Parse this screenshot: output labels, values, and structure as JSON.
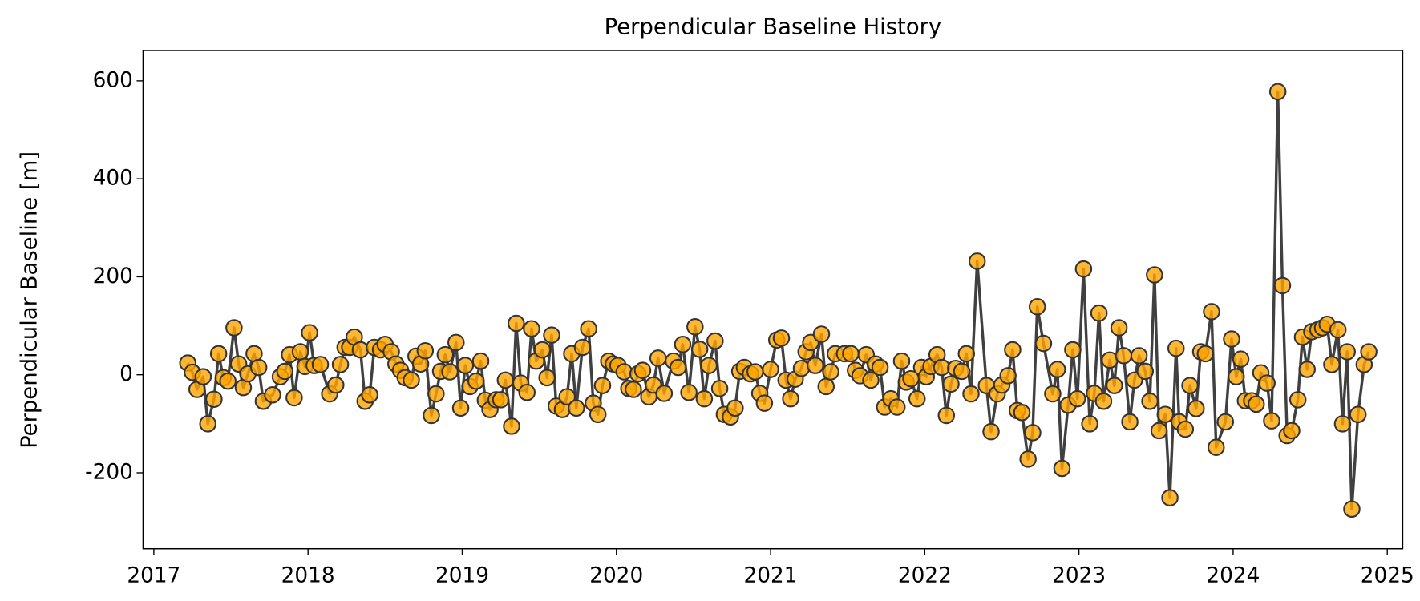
{
  "chart_data": {
    "type": "line",
    "title": "Perpendicular Baseline History",
    "y_label": "Perpendicular Baseline [m]",
    "color": "#404040",
    "marker_color": "#ffa500",
    "marker_edge": "#333333",
    "xlim": [
      2016.93,
      2025.1
    ],
    "xticks": [
      2017,
      2018,
      2019,
      2020,
      2021,
      2022,
      2023,
      2024,
      2025
    ],
    "ylim": [
      -355,
      662
    ],
    "yticks": [
      -200,
      0,
      200,
      400,
      600
    ],
    "grid": false,
    "x": [
      2017.22,
      2017.25,
      2017.28,
      2017.32,
      2017.35,
      2017.39,
      2017.42,
      2017.45,
      2017.48,
      2017.52,
      2017.55,
      2017.58,
      2017.61,
      2017.65,
      2017.68,
      2017.71,
      2017.77,
      2017.82,
      2017.85,
      2017.88,
      2017.91,
      2017.95,
      2017.98,
      2018.01,
      2018.04,
      2018.08,
      2018.14,
      2018.18,
      2018.21,
      2018.24,
      2018.27,
      2018.3,
      2018.34,
      2018.37,
      2018.4,
      2018.43,
      2018.47,
      2018.5,
      2018.54,
      2018.57,
      2018.6,
      2018.63,
      2018.67,
      2018.7,
      2018.73,
      2018.76,
      2018.8,
      2018.83,
      2018.86,
      2018.89,
      2018.92,
      2018.96,
      2018.99,
      2019.02,
      2019.05,
      2019.09,
      2019.12,
      2019.15,
      2019.18,
      2019.22,
      2019.25,
      2019.28,
      2019.32,
      2019.35,
      2019.38,
      2019.42,
      2019.45,
      2019.48,
      2019.52,
      2019.55,
      2019.58,
      2019.61,
      2019.65,
      2019.68,
      2019.71,
      2019.74,
      2019.78,
      2019.82,
      2019.85,
      2019.88,
      2019.91,
      2019.95,
      2019.98,
      2020.01,
      2020.05,
      2020.08,
      2020.11,
      2020.14,
      2020.17,
      2020.21,
      2020.24,
      2020.27,
      2020.31,
      2020.37,
      2020.4,
      2020.43,
      2020.47,
      2020.51,
      2020.54,
      2020.57,
      2020.6,
      2020.64,
      2020.67,
      2020.7,
      2020.74,
      2020.77,
      2020.8,
      2020.83,
      2020.87,
      2020.9,
      2020.93,
      2020.96,
      2021.0,
      2021.04,
      2021.07,
      2021.1,
      2021.13,
      2021.16,
      2021.2,
      2021.23,
      2021.26,
      2021.29,
      2021.33,
      2021.36,
      2021.39,
      2021.42,
      2021.48,
      2021.52,
      2021.55,
      2021.58,
      2021.62,
      2021.65,
      2021.68,
      2021.71,
      2021.74,
      2021.78,
      2021.82,
      2021.85,
      2021.88,
      2021.91,
      2021.95,
      2021.98,
      2022.01,
      2022.04,
      2022.08,
      2022.11,
      2022.14,
      2022.17,
      2022.2,
      2022.24,
      2022.27,
      2022.3,
      2022.34,
      2022.4,
      2022.43,
      2022.47,
      2022.5,
      2022.54,
      2022.57,
      2022.6,
      2022.63,
      2022.67,
      2022.7,
      2022.73,
      2022.77,
      2022.83,
      2022.86,
      2022.89,
      2022.93,
      2022.96,
      2022.99,
      2023.03,
      2023.07,
      2023.1,
      2023.13,
      2023.16,
      2023.2,
      2023.23,
      2023.26,
      2023.29,
      2023.33,
      2023.36,
      2023.39,
      2023.43,
      2023.46,
      2023.49,
      2023.52,
      2023.56,
      2023.59,
      2023.63,
      2023.65,
      2023.69,
      2023.72,
      2023.76,
      2023.79,
      2023.82,
      2023.86,
      2023.89,
      2023.95,
      2023.99,
      2024.02,
      2024.05,
      2024.08,
      2024.12,
      2024.15,
      2024.18,
      2024.22,
      2024.25,
      2024.29,
      2024.32,
      2024.35,
      2024.38,
      2024.42,
      2024.45,
      2024.48,
      2024.51,
      2024.55,
      2024.58,
      2024.61,
      2024.64,
      2024.68,
      2024.71,
      2024.74,
      2024.77,
      2024.81,
      2024.85,
      2024.88
    ],
    "values": [
      24,
      5,
      -30,
      -4,
      -100,
      -50,
      43,
      -6,
      -13,
      96,
      22,
      -26,
      2,
      43,
      15,
      -54,
      -41,
      -4,
      7,
      41,
      -47,
      47,
      17,
      86,
      19,
      21,
      -39,
      -21,
      21,
      56,
      56,
      77,
      51,
      -54,
      -41,
      56,
      51,
      62,
      47,
      22,
      9,
      -6,
      -11,
      38,
      22,
      49,
      -83,
      -39,
      7,
      41,
      6,
      66,
      -68,
      19,
      -24,
      -13,
      28,
      -52,
      -71,
      -51,
      -51,
      -11,
      -105,
      105,
      -17,
      -36,
      94,
      28,
      51,
      -6,
      81,
      -64,
      -71,
      -45,
      43,
      -68,
      56,
      94,
      -58,
      -81,
      -22,
      28,
      22,
      19,
      6,
      -28,
      -30,
      2,
      9,
      -45,
      -21,
      34,
      -38,
      28,
      15,
      62,
      -36,
      98,
      52,
      -49,
      19,
      69,
      -28,
      -81,
      -86,
      -68,
      7,
      15,
      2,
      6,
      -38,
      -58,
      11,
      71,
      75,
      -11,
      -49,
      -9,
      13,
      47,
      66,
      19,
      83,
      -24,
      6,
      43,
      43,
      43,
      9,
      -2,
      41,
      -11,
      22,
      15,
      -66,
      -49,
      -66,
      28,
      -15,
      -8,
      -49,
      15,
      -4,
      17,
      41,
      15,
      -83,
      -19,
      13,
      7,
      43,
      -39,
      232,
      -22,
      -116,
      -39,
      -21,
      -2,
      51,
      -73,
      -77,
      -172,
      -118,
      139,
      64,
      -39,
      11,
      -191,
      -62,
      51,
      -49,
      216,
      -100,
      -38,
      126,
      -54,
      30,
      -22,
      96,
      39,
      -96,
      -11,
      39,
      7,
      -54,
      204,
      -114,
      -81,
      -251,
      54,
      -96,
      -111,
      -22,
      -69,
      47,
      43,
      129,
      -148,
      -96,
      73,
      -4,
      32,
      -53,
      -53,
      -60,
      4,
      -17,
      -94,
      578,
      182,
      -124,
      -114,
      -51,
      77,
      11,
      88,
      92,
      96,
      103,
      21,
      92,
      -100,
      47,
      -274,
      -81,
      21,
      47
    ]
  }
}
